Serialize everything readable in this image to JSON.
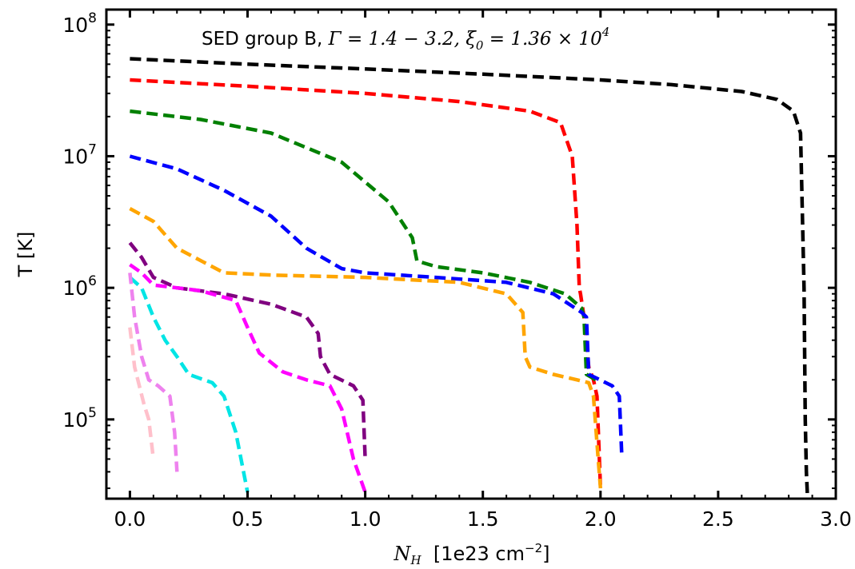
{
  "chart_data": {
    "type": "line",
    "title": "SED group B, Γ = 1.4 − 3.2, ξ₀ = 1.36 × 10⁴",
    "title_parts": {
      "prefix": "SED group B, ",
      "gamma_symbol": "Γ",
      "gamma_value": " = 1.4 − 3.2, ",
      "xi_symbol": "ξ",
      "xi_subscript": "0",
      "xi_value": " = 1.36 × 10",
      "xi_exponent": "4"
    },
    "xlabel": "N_H  [1e23 cm⁻²]",
    "xlabel_parts": {
      "symbol": "N",
      "subscript": "H",
      "units_prefix": "  [1e23 cm",
      "units_exponent": "−2",
      "units_suffix": "]"
    },
    "ylabel": "T [K]",
    "xlim": [
      -0.1,
      3.0
    ],
    "ylim": [
      25000,
      130000000
    ],
    "yscale": "log",
    "grid": false,
    "x_ticks": [
      {
        "value": 0.0,
        "label": "0.0"
      },
      {
        "value": 0.5,
        "label": "0.5"
      },
      {
        "value": 1.0,
        "label": "1.0"
      },
      {
        "value": 1.5,
        "label": "1.5"
      },
      {
        "value": 2.0,
        "label": "2.0"
      },
      {
        "value": 2.5,
        "label": "2.5"
      },
      {
        "value": 3.0,
        "label": "3.0"
      }
    ],
    "y_ticks": [
      {
        "value": 100000,
        "base": "10",
        "exp": "5"
      },
      {
        "value": 1000000,
        "base": "10",
        "exp": "6"
      },
      {
        "value": 10000000,
        "base": "10",
        "exp": "7"
      },
      {
        "value": 100000000,
        "base": "10",
        "exp": "8"
      }
    ],
    "line_style": "dashed",
    "series": [
      {
        "color": "#000000",
        "x": [
          0.0,
          0.5,
          1.0,
          1.5,
          2.0,
          2.3,
          2.6,
          2.75,
          2.82,
          2.85,
          2.865,
          2.87,
          2.875,
          2.88
        ],
        "y": [
          55000000,
          50000000,
          46000000,
          42000000,
          38000000,
          35000000,
          31000000,
          27000000,
          22000000,
          15000000,
          1000000,
          100000,
          40000,
          25000
        ]
      },
      {
        "color": "#ff0000",
        "x": [
          0.0,
          0.5,
          1.0,
          1.4,
          1.7,
          1.83,
          1.88,
          1.9,
          1.91,
          1.915,
          1.93,
          1.95,
          1.97,
          1.985,
          2.0
        ],
        "y": [
          38000000,
          34000000,
          30000000,
          26000000,
          22000000,
          18000000,
          10000000,
          3000000,
          1000000,
          900000,
          600000,
          250000,
          200000,
          150000,
          30000
        ]
      },
      {
        "color": "#008000",
        "x": [
          0.0,
          0.3,
          0.6,
          0.9,
          1.1,
          1.2,
          1.22,
          1.3,
          1.5,
          1.7,
          1.85,
          1.92,
          1.93,
          1.94,
          1.96,
          1.98
        ],
        "y": [
          22000000,
          19000000,
          15000000,
          9000000,
          4500000,
          2400000,
          1600000,
          1450000,
          1300000,
          1100000,
          900000,
          700000,
          600000,
          220000,
          210000,
          200000
        ]
      },
      {
        "color": "#0000ff",
        "x": [
          0.0,
          0.2,
          0.4,
          0.6,
          0.75,
          0.9,
          1.0,
          1.3,
          1.6,
          1.8,
          1.92,
          1.94,
          1.95,
          2.05,
          2.08,
          2.09
        ],
        "y": [
          10000000,
          8000000,
          5500000,
          3500000,
          2000000,
          1400000,
          1300000,
          1200000,
          1100000,
          900000,
          650000,
          600000,
          220000,
          180000,
          150000,
          55000
        ]
      },
      {
        "color": "#ffa500",
        "x": [
          0.0,
          0.1,
          0.2,
          0.4,
          0.6,
          1.0,
          1.4,
          1.6,
          1.67,
          1.68,
          1.7,
          1.8,
          1.9,
          1.95,
          1.97,
          1.99,
          2.0
        ],
        "y": [
          4000000,
          3200000,
          2000000,
          1300000,
          1250000,
          1200000,
          1100000,
          900000,
          650000,
          300000,
          250000,
          220000,
          200000,
          190000,
          150000,
          50000,
          30000
        ]
      },
      {
        "color": "#800080",
        "x": [
          0.0,
          0.05,
          0.1,
          0.2,
          0.4,
          0.6,
          0.75,
          0.8,
          0.81,
          0.85,
          0.95,
          0.99,
          1.0
        ],
        "y": [
          2200000,
          1700000,
          1200000,
          1000000,
          900000,
          750000,
          600000,
          450000,
          300000,
          220000,
          180000,
          140000,
          50000
        ]
      },
      {
        "color": "#ff00ff",
        "x": [
          0.0,
          0.05,
          0.1,
          0.2,
          0.3,
          0.45,
          0.5,
          0.55,
          0.65,
          0.75,
          0.85,
          0.9,
          0.95,
          1.0
        ],
        "y": [
          1500000,
          1300000,
          1050000,
          1000000,
          950000,
          800000,
          500000,
          320000,
          230000,
          200000,
          180000,
          120000,
          50000,
          28000
        ]
      },
      {
        "color": "#00e5e5",
        "x": [
          0.0,
          0.05,
          0.1,
          0.15,
          0.2,
          0.25,
          0.35,
          0.4,
          0.45,
          0.5
        ],
        "y": [
          1200000,
          1000000,
          600000,
          400000,
          300000,
          220000,
          190000,
          150000,
          80000,
          28000
        ]
      },
      {
        "color": "#ee82ee",
        "x": [
          0.0,
          0.02,
          0.05,
          0.08,
          0.12,
          0.17,
          0.19,
          0.2
        ],
        "y": [
          1300000,
          600000,
          300000,
          200000,
          180000,
          150000,
          80000,
          40000
        ]
      },
      {
        "color": "#ffc0cb",
        "x": [
          0.0,
          0.02,
          0.04,
          0.06,
          0.08,
          0.1
        ],
        "y": [
          500000,
          250000,
          180000,
          130000,
          100000,
          50000
        ]
      }
    ]
  }
}
